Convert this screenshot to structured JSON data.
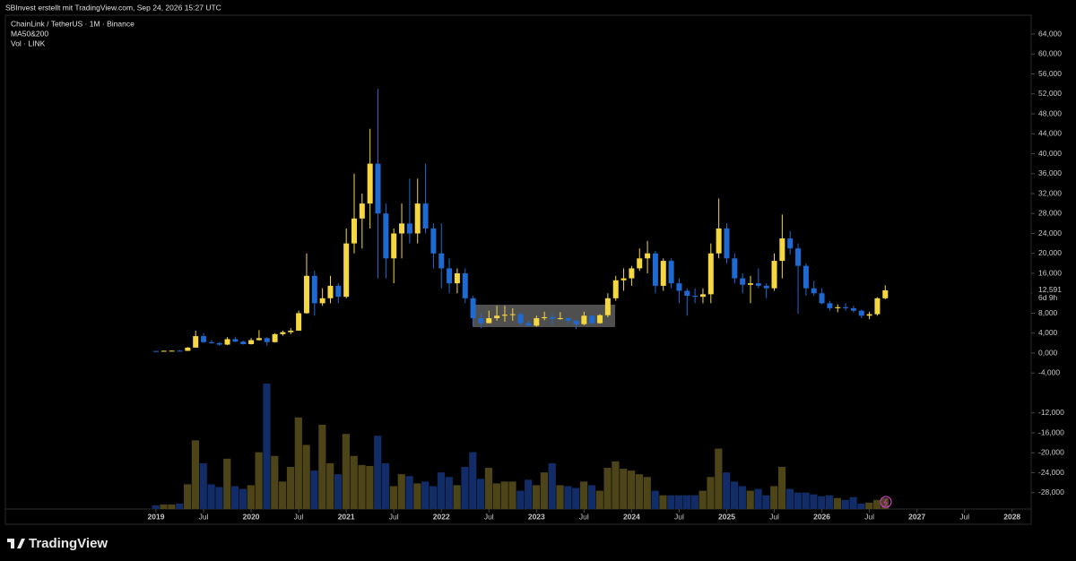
{
  "header": {
    "credit": "SBInvest erstellt mit TradingView.com, Sep 24, 2026 15:27 UTC",
    "symbol": "ChainLink / TetherUS · 1M · Binance",
    "indicator": "MA50&200",
    "volume_label": "Vol · LINK"
  },
  "brand": "TradingView",
  "chart_data": {
    "type": "candlestick",
    "x": [
      "2019-01",
      "2019-02",
      "2019-03",
      "2019-04",
      "2019-05",
      "2019-06",
      "2019-07",
      "2019-08",
      "2019-09",
      "2019-10",
      "2019-11",
      "2019-12",
      "2020-01",
      "2020-02",
      "2020-03",
      "2020-04",
      "2020-05",
      "2020-06",
      "2020-07",
      "2020-08",
      "2020-09",
      "2020-10",
      "2020-11",
      "2020-12",
      "2021-01",
      "2021-02",
      "2021-03",
      "2021-04",
      "2021-05",
      "2021-06",
      "2021-07",
      "2021-08",
      "2021-09",
      "2021-10",
      "2021-11",
      "2021-12",
      "2022-01",
      "2022-02",
      "2022-03",
      "2022-04",
      "2022-05",
      "2022-06",
      "2022-07",
      "2022-08",
      "2022-09",
      "2022-10",
      "2022-11",
      "2022-12",
      "2023-01",
      "2023-02",
      "2023-03",
      "2023-04",
      "2023-05",
      "2023-06",
      "2023-07",
      "2023-08",
      "2023-09",
      "2023-10",
      "2023-11",
      "2023-12",
      "2024-01",
      "2024-02",
      "2024-03",
      "2024-04",
      "2024-05",
      "2024-06",
      "2024-07",
      "2024-08",
      "2024-09",
      "2024-10",
      "2024-11",
      "2024-12",
      "2025-01",
      "2025-02",
      "2025-03",
      "2025-04",
      "2025-05",
      "2025-06",
      "2025-07",
      "2025-08",
      "2025-09",
      "2025-10",
      "2025-11",
      "2025-12",
      "2026-01",
      "2026-02",
      "2026-03",
      "2026-04",
      "2026-05",
      "2026-06",
      "2026-07",
      "2026-08",
      "2026-09"
    ],
    "open": [
      0.42,
      0.4,
      0.46,
      0.48,
      0.45,
      1.1,
      3.4,
      2.2,
      2.0,
      1.7,
      2.8,
      2.3,
      1.8,
      2.6,
      3.0,
      2.2,
      3.8,
      4.2,
      4.5,
      8.0,
      15.5,
      10.0,
      11,
      13.5,
      11.3,
      22,
      27,
      30,
      38,
      28,
      19,
      24,
      26,
      24,
      30,
      25,
      20,
      17,
      14,
      16,
      11,
      7,
      6,
      7,
      7.5,
      7.7,
      7.8,
      6,
      5.5,
      7,
      7.2,
      6.9,
      7.0,
      6.5,
      5.8,
      7.5,
      6,
      7.6,
      11,
      14.6,
      15,
      17,
      19,
      20,
      13.5,
      18.5,
      14,
      12.5,
      11.5,
      11.3,
      11.8,
      20,
      25,
      19,
      15,
      13.7,
      14,
      13.5,
      13,
      18.5,
      23,
      21,
      17.5,
      13,
      12,
      10,
      9,
      9.2,
      9,
      8.5,
      7.5,
      7.8,
      11
    ],
    "high": [
      0.46,
      0.5,
      0.52,
      0.6,
      1.2,
      4.5,
      4.0,
      2.6,
      2.2,
      3.2,
      3.3,
      2.5,
      3.0,
      4.6,
      3.2,
      4.0,
      4.5,
      5.0,
      8.5,
      20,
      16.5,
      13,
      15.5,
      14,
      25,
      36,
      32,
      45,
      53,
      30,
      25,
      30,
      35,
      35,
      38,
      26,
      26,
      19,
      17,
      17,
      11.5,
      8,
      8.5,
      9.5,
      9.5,
      9.0,
      8.2,
      6.5,
      7.5,
      8.3,
      8,
      8.2,
      7.1,
      6.6,
      8.3,
      7.6,
      7.8,
      12,
      15.5,
      17,
      17.5,
      21,
      22.5,
      20.5,
      19,
      19,
      15,
      13,
      13,
      13,
      22,
      31,
      26,
      20,
      16,
      15.5,
      17,
      14,
      20,
      27.8,
      24.5,
      22,
      18,
      14.5,
      13,
      10.5,
      9.8,
      10,
      9.5,
      8.7,
      8.3,
      11.2,
      13.6
    ],
    "low": [
      0.34,
      0.38,
      0.42,
      0.4,
      0.43,
      1.1,
      2.0,
      1.9,
      1.5,
      1.6,
      2.2,
      1.7,
      1.7,
      2.5,
      1.5,
      2.1,
      3.5,
      3.8,
      4.5,
      7.9,
      7.5,
      9.5,
      10,
      10,
      11,
      20,
      21,
      25,
      15,
      15,
      14,
      19,
      22,
      22,
      24,
      17,
      13,
      12,
      12,
      10,
      5.5,
      5,
      6,
      6.5,
      6.3,
      6.5,
      5.5,
      5.5,
      5.3,
      6.6,
      5.8,
      6.7,
      6.0,
      4.8,
      5.6,
      5.8,
      5.9,
      7.2,
      10.5,
      12.5,
      13.5,
      16.5,
      16,
      12,
      12.5,
      13,
      10,
      7.5,
      10,
      10,
      10,
      19,
      18,
      14,
      12,
      10,
      13,
      11,
      12.5,
      15,
      19.8,
      7.9,
      11.5,
      11.5,
      9.8,
      8.5,
      8.2,
      8.5,
      8.2,
      7,
      6.8,
      7.5,
      10.8
    ],
    "close": [
      0.4,
      0.46,
      0.48,
      0.45,
      1.1,
      3.4,
      2.2,
      2.0,
      1.7,
      2.8,
      2.3,
      1.8,
      2.6,
      3.0,
      2.2,
      3.8,
      4.2,
      4.5,
      8.0,
      15.5,
      10.0,
      11,
      13.5,
      11.3,
      22,
      27,
      30,
      38,
      28,
      19,
      24,
      26,
      24,
      30,
      25,
      20,
      17,
      14,
      16,
      11,
      7,
      6,
      7,
      7.5,
      7.7,
      7.8,
      6,
      5.5,
      7,
      7.2,
      6.9,
      7.0,
      6.5,
      5.8,
      7.5,
      6,
      7.6,
      11,
      14.6,
      15,
      17,
      19,
      20,
      13.5,
      18.5,
      14,
      12.5,
      11.5,
      11.3,
      11.8,
      20,
      25,
      19,
      15,
      13.7,
      14,
      13.5,
      13,
      18.5,
      23,
      21,
      17.5,
      13,
      12,
      10,
      9,
      9.2,
      9.0,
      8.5,
      7.5,
      7.8,
      11,
      12.591
    ],
    "volume": [
      4,
      5,
      5,
      6,
      27,
      75,
      50,
      27,
      24,
      55,
      25,
      22,
      26,
      62,
      137,
      58,
      30,
      46,
      100,
      70,
      42,
      92,
      50,
      38,
      82,
      58,
      48,
      47,
      80,
      50,
      25,
      38,
      36,
      28,
      30,
      25,
      40,
      35,
      26,
      46,
      62,
      33,
      45,
      28,
      30,
      30,
      20,
      32,
      26,
      40,
      50,
      26,
      25,
      23,
      30,
      26,
      20,
      45,
      52,
      44,
      42,
      38,
      35,
      20,
      15,
      15,
      15,
      15,
      15,
      20,
      35,
      66,
      40,
      30,
      25,
      20,
      22,
      15,
      25,
      46,
      22,
      18,
      18,
      16,
      14,
      15,
      12,
      10,
      13,
      6,
      7,
      10,
      12
    ],
    "up_color": "#f5d742",
    "down_color": "#1f6ad1",
    "volume_up_color": "#4d4417",
    "volume_down_color": "#112c66",
    "ylim": [
      -32,
      68
    ],
    "yticks": [
      {
        "value": 64,
        "label": "64,000"
      },
      {
        "value": 60,
        "label": "60,000"
      },
      {
        "value": 56,
        "label": "56,000"
      },
      {
        "value": 52,
        "label": "52,000"
      },
      {
        "value": 48,
        "label": "48,000"
      },
      {
        "value": 44,
        "label": "44,000"
      },
      {
        "value": 40,
        "label": "40,000"
      },
      {
        "value": 36,
        "label": "36,000"
      },
      {
        "value": 32,
        "label": "32,000"
      },
      {
        "value": 28,
        "label": "28,000"
      },
      {
        "value": 24,
        "label": "24,000"
      },
      {
        "value": 20,
        "label": "20,000"
      },
      {
        "value": 16,
        "label": "16,000"
      },
      {
        "value": 12,
        "label": "12,000"
      },
      {
        "value": 8,
        "label": "8,000"
      },
      {
        "value": 4,
        "label": "4,000"
      },
      {
        "value": 0,
        "label": "0,000"
      },
      {
        "value": -4,
        "label": "-4,000"
      },
      {
        "value": -12,
        "label": "-12,000"
      },
      {
        "value": -16,
        "label": "-16,000"
      },
      {
        "value": -20,
        "label": "-20,000"
      },
      {
        "value": -24,
        "label": "-24,000"
      },
      {
        "value": -28,
        "label": "-28,000"
      }
    ],
    "xticks": [
      {
        "value": "2019-01",
        "label": "2019"
      },
      {
        "value": "2019-07",
        "label": "Jul"
      },
      {
        "value": "2020-01",
        "label": "2020"
      },
      {
        "value": "2020-07",
        "label": "Jul"
      },
      {
        "value": "2021-01",
        "label": "2021"
      },
      {
        "value": "2021-07",
        "label": "Jul"
      },
      {
        "value": "2022-01",
        "label": "2022"
      },
      {
        "value": "2022-07",
        "label": "Jul"
      },
      {
        "value": "2023-01",
        "label": "2023"
      },
      {
        "value": "2023-07",
        "label": "Jul"
      },
      {
        "value": "2024-01",
        "label": "2024"
      },
      {
        "value": "2024-07",
        "label": "Jul"
      },
      {
        "value": "2025-01",
        "label": "2025"
      },
      {
        "value": "2025-07",
        "label": "Jul"
      },
      {
        "value": "2026-01",
        "label": "2026"
      },
      {
        "value": "2026-07",
        "label": "Jul"
      },
      {
        "value": "2027-01",
        "label": "2027"
      },
      {
        "value": "2027-07",
        "label": "Jul"
      },
      {
        "value": "2028-01",
        "label": "2028"
      }
    ],
    "last_price": {
      "value": 12.591,
      "label": "12,591"
    },
    "countdown": "6d 9h"
  }
}
